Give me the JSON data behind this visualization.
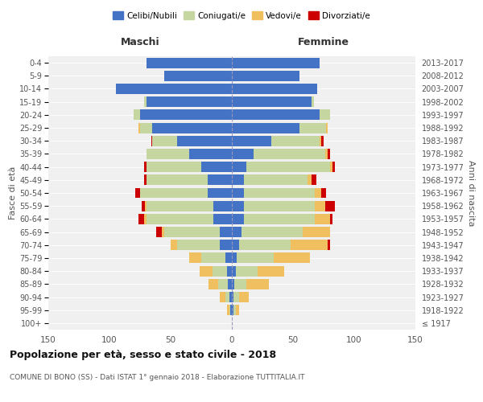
{
  "age_groups": [
    "100+",
    "95-99",
    "90-94",
    "85-89",
    "80-84",
    "75-79",
    "70-74",
    "65-69",
    "60-64",
    "55-59",
    "50-54",
    "45-49",
    "40-44",
    "35-39",
    "30-34",
    "25-29",
    "20-24",
    "15-19",
    "10-14",
    "5-9",
    "0-4"
  ],
  "birth_years": [
    "≤ 1917",
    "1918-1922",
    "1923-1927",
    "1928-1932",
    "1933-1937",
    "1938-1942",
    "1943-1947",
    "1948-1952",
    "1953-1957",
    "1958-1962",
    "1963-1967",
    "1968-1972",
    "1973-1977",
    "1978-1982",
    "1983-1987",
    "1988-1992",
    "1993-1997",
    "1998-2002",
    "2003-2007",
    "2008-2012",
    "2013-2017"
  ],
  "colors": {
    "celibe": "#4472c4",
    "coniugato": "#c5d6a0",
    "vedovo": "#f0c060",
    "divorziato": "#cc0000"
  },
  "maschi": {
    "celibe": [
      0,
      1,
      2,
      3,
      4,
      5,
      10,
      10,
      15,
      15,
      20,
      20,
      25,
      35,
      45,
      65,
      75,
      70,
      95,
      55,
      70
    ],
    "coniugato": [
      0,
      1,
      3,
      8,
      12,
      20,
      35,
      45,
      55,
      55,
      55,
      50,
      45,
      35,
      20,
      10,
      5,
      2,
      0,
      0,
      0
    ],
    "vedovo": [
      0,
      2,
      5,
      8,
      10,
      10,
      5,
      2,
      2,
      1,
      0,
      0,
      0,
      0,
      0,
      1,
      0,
      0,
      0,
      0,
      0
    ],
    "divorziato": [
      0,
      0,
      0,
      0,
      0,
      0,
      0,
      5,
      4,
      3,
      4,
      2,
      2,
      0,
      1,
      0,
      0,
      0,
      0,
      0,
      0
    ]
  },
  "femmine": {
    "nubile": [
      0,
      1,
      1,
      2,
      3,
      4,
      6,
      8,
      10,
      10,
      10,
      10,
      12,
      18,
      32,
      55,
      72,
      65,
      70,
      55,
      72
    ],
    "coniugata": [
      0,
      2,
      5,
      10,
      18,
      30,
      42,
      50,
      58,
      58,
      58,
      52,
      68,
      58,
      40,
      22,
      8,
      2,
      0,
      0,
      0
    ],
    "vedova": [
      0,
      3,
      8,
      18,
      22,
      30,
      30,
      22,
      12,
      8,
      5,
      3,
      2,
      2,
      1,
      1,
      0,
      0,
      0,
      0,
      0
    ],
    "divorziata": [
      0,
      0,
      0,
      0,
      0,
      0,
      2,
      0,
      2,
      8,
      4,
      4,
      2,
      2,
      2,
      0,
      0,
      0,
      0,
      0,
      0
    ]
  },
  "xlim": 150,
  "title": "Popolazione per età, sesso e stato civile - 2018",
  "subtitle": "COMUNE DI BONO (SS) - Dati ISTAT 1° gennaio 2018 - Elaborazione TUTTITALIA.IT",
  "ylabel_left": "Fasce di età",
  "ylabel_right": "Anni di nascita",
  "xlabel_left": "Maschi",
  "xlabel_right": "Femmine",
  "legend_labels": [
    "Celibi/Nubili",
    "Coniugati/e",
    "Vedovi/e",
    "Divorziati/e"
  ],
  "bg_color": "#f0f0f0",
  "bar_height": 0.8
}
